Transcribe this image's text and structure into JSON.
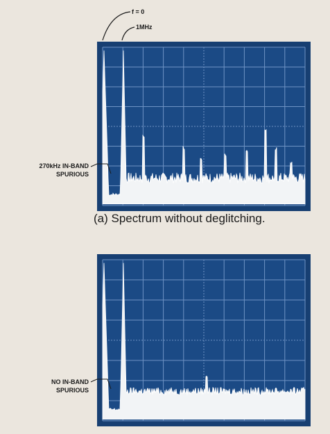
{
  "panels": [
    {
      "annotations": {
        "f0": "f = 0",
        "mhz": "1MHz",
        "spurious": [
          "270kHz IN-BAND",
          "SPURIOUS"
        ]
      },
      "caption": "(a)  Spectrum without deglitching."
    },
    {
      "annotations": {
        "spurious": [
          "NO IN-BAND",
          "SPURIOUS"
        ]
      }
    }
  ]
}
